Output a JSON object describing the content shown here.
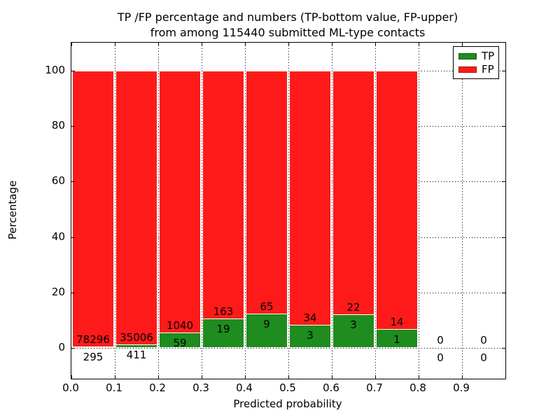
{
  "title": {
    "line1": "TP /FP percentage and numbers (TP-bottom value, FP-upper)",
    "line2": "from among 115440 submitted ML-type contacts"
  },
  "axes": {
    "xlabel": "Predicted probability",
    "ylabel": "Percentage"
  },
  "legend": {
    "items": [
      {
        "label": "TP",
        "color_key": "tp"
      },
      {
        "label": "FP",
        "color_key": "fp"
      }
    ]
  },
  "chart_data": {
    "type": "bar",
    "stacked": true,
    "title": "TP /FP percentage and numbers (TP-bottom value, FP-upper) from among 115440 submitted ML-type contacts",
    "xlabel": "Predicted probability",
    "ylabel": "Percentage",
    "total_contacts": 115440,
    "xlim": [
      0.0,
      1.0
    ],
    "ylim": [
      -11,
      110
    ],
    "x_ticks": [
      "0.0",
      "0.1",
      "0.2",
      "0.3",
      "0.4",
      "0.5",
      "0.6",
      "0.7",
      "0.8",
      "0.9"
    ],
    "y_ticks": [
      0,
      20,
      40,
      60,
      80,
      100
    ],
    "grid": "dotted",
    "legend_position": "upper right",
    "colors": {
      "tp": "#1e8c1e",
      "fp": "#ff1a1a",
      "bar_edge": "#ffffff"
    },
    "series_note": "Each bin stacks TP% (bottom, green) and FP% (top, red) to 100%; labels show raw counts (TP bottom value, FP upper)",
    "bins": [
      {
        "x0": 0.0,
        "x1": 0.1,
        "tp_count": 295,
        "fp_count": 78296,
        "tp_pct": 0.38,
        "fp_pct": 99.62
      },
      {
        "x0": 0.1,
        "x1": 0.2,
        "tp_count": 411,
        "fp_count": 35006,
        "tp_pct": 1.16,
        "fp_pct": 98.84
      },
      {
        "x0": 0.2,
        "x1": 0.3,
        "tp_count": 59,
        "fp_count": 1040,
        "tp_pct": 5.37,
        "fp_pct": 94.63
      },
      {
        "x0": 0.3,
        "x1": 0.4,
        "tp_count": 19,
        "fp_count": 163,
        "tp_pct": 10.44,
        "fp_pct": 89.56
      },
      {
        "x0": 0.4,
        "x1": 0.5,
        "tp_count": 9,
        "fp_count": 65,
        "tp_pct": 12.16,
        "fp_pct": 87.84
      },
      {
        "x0": 0.5,
        "x1": 0.6,
        "tp_count": 3,
        "fp_count": 34,
        "tp_pct": 8.11,
        "fp_pct": 91.89
      },
      {
        "x0": 0.6,
        "x1": 0.7,
        "tp_count": 3,
        "fp_count": 22,
        "tp_pct": 12.0,
        "fp_pct": 88.0
      },
      {
        "x0": 0.7,
        "x1": 0.8,
        "tp_count": 1,
        "fp_count": 14,
        "tp_pct": 6.67,
        "fp_pct": 93.33
      },
      {
        "x0": 0.8,
        "x1": 0.9,
        "tp_count": 0,
        "fp_count": 0,
        "tp_pct": 0,
        "fp_pct": 0
      },
      {
        "x0": 0.9,
        "x1": 1.0,
        "tp_count": 0,
        "fp_count": 0,
        "tp_pct": 0,
        "fp_pct": 0
      }
    ]
  }
}
